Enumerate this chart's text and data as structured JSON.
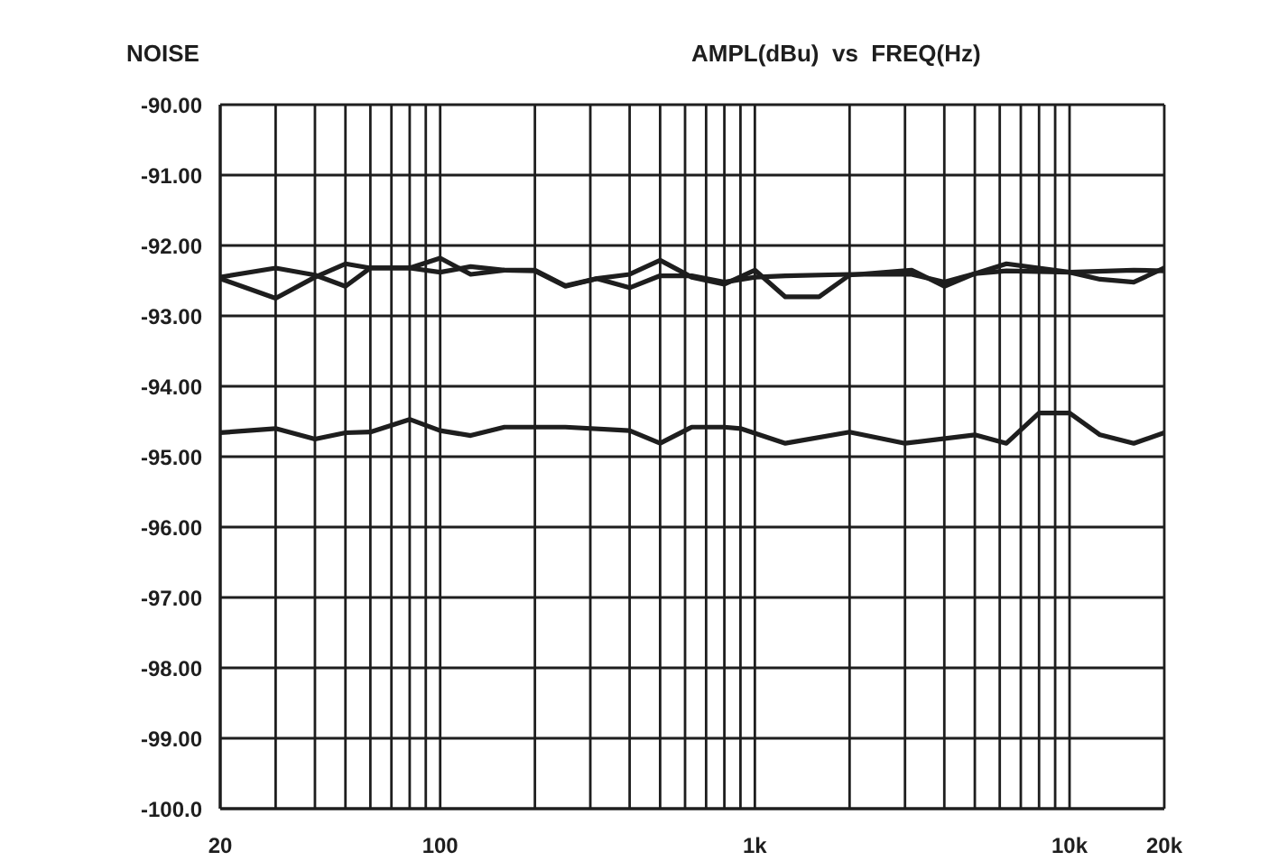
{
  "chart_data": {
    "type": "line",
    "title": "NOISE",
    "subtitle": "AMPL(dBu)  vs  FREQ(Hz)",
    "log": "x",
    "grid": true,
    "marker": "none",
    "line_style": "solid",
    "xlim": [
      20,
      20000
    ],
    "xticks": [
      20,
      {
        "value": 30,
        "label": null
      },
      {
        "value": 40,
        "label": null
      },
      {
        "value": 50,
        "label": null
      },
      {
        "value": 60,
        "label": null
      },
      {
        "value": 70,
        "label": null
      },
      {
        "value": 80,
        "label": null
      },
      {
        "value": 90,
        "label": null
      },
      100,
      {
        "value": 200,
        "label": null
      },
      {
        "value": 300,
        "label": null
      },
      {
        "value": 400,
        "label": null
      },
      {
        "value": 500,
        "label": null
      },
      {
        "value": 600,
        "label": null
      },
      {
        "value": 700,
        "label": null
      },
      {
        "value": 800,
        "label": null
      },
      {
        "value": 900,
        "label": null
      },
      {
        "value": 1000,
        "label": "1k"
      },
      {
        "value": 2000,
        "label": null
      },
      {
        "value": 3000,
        "label": null
      },
      {
        "value": 4000,
        "label": null
      },
      {
        "value": 5000,
        "label": null
      },
      {
        "value": 6000,
        "label": null
      },
      {
        "value": 7000,
        "label": null
      },
      {
        "value": 8000,
        "label": null
      },
      {
        "value": 9000,
        "label": null
      },
      {
        "value": 10000,
        "label": "10k"
      },
      {
        "value": 20000,
        "label": "20k"
      }
    ],
    "ylim": [
      -100,
      -90
    ],
    "yticks": [
      {
        "value": -100,
        "label": "-100.0"
      },
      {
        "value": -99,
        "label": "-99.00"
      },
      {
        "value": -98,
        "label": "-98.00"
      },
      {
        "value": -97,
        "label": "-97.00"
      },
      {
        "value": -96,
        "label": "-96.00"
      },
      {
        "value": -95,
        "label": "-95.00"
      },
      {
        "value": -94,
        "label": "-94.00"
      },
      {
        "value": -93,
        "label": "-93.00"
      },
      {
        "value": -92,
        "label": "-92.00"
      },
      {
        "value": -91,
        "label": "-91.00"
      },
      {
        "value": -90,
        "label": "-90.00"
      }
    ],
    "series": [
      {
        "color": "#1e1e1e",
        "x": [
          20,
          30,
          40,
          50,
          60,
          80,
          100,
          125,
          160,
          200,
          250,
          315,
          400,
          500,
          630,
          800,
          1000,
          1250,
          1600,
          2000,
          3150,
          4000,
          5000,
          6300,
          10000,
          12500,
          16000,
          20000
        ],
        "values": [
          -92.47,
          -92.75,
          -92.45,
          -92.26,
          -92.32,
          -92.32,
          -92.18,
          -92.41,
          -92.35,
          -92.35,
          -92.57,
          -92.47,
          -92.41,
          -92.21,
          -92.45,
          -92.55,
          -92.35,
          -92.73,
          -92.73,
          -92.42,
          -92.35,
          -92.58,
          -92.4,
          -92.26,
          -92.38,
          -92.48,
          -92.52,
          -92.32
        ]
      },
      {
        "color": "#1e1e1e",
        "x": [
          20,
          30,
          40,
          50,
          60,
          80,
          100,
          125,
          160,
          200,
          250,
          315,
          400,
          500,
          630,
          800,
          1000,
          1250,
          2000,
          3150,
          4000,
          5000,
          6300,
          10000,
          16000,
          20000
        ],
        "values": [
          -92.45,
          -92.32,
          -92.42,
          -92.58,
          -92.32,
          -92.32,
          -92.38,
          -92.3,
          -92.35,
          -92.36,
          -92.58,
          -92.47,
          -92.6,
          -92.43,
          -92.43,
          -92.52,
          -92.45,
          -92.43,
          -92.41,
          -92.41,
          -92.52,
          -92.4,
          -92.36,
          -92.38,
          -92.35,
          -92.36
        ]
      },
      {
        "color": "#1e1e1e",
        "x": [
          20,
          30,
          40,
          50,
          60,
          80,
          100,
          125,
          160,
          250,
          400,
          500,
          630,
          800,
          900,
          1250,
          2000,
          3000,
          5000,
          6300,
          8000,
          10000,
          12500,
          16000,
          20000
        ],
        "values": [
          -94.66,
          -94.6,
          -94.75,
          -94.66,
          -94.65,
          -94.47,
          -94.63,
          -94.7,
          -94.58,
          -94.58,
          -94.63,
          -94.81,
          -94.58,
          -94.58,
          -94.6,
          -94.81,
          -94.65,
          -94.81,
          -94.69,
          -94.81,
          -94.38,
          -94.38,
          -94.69,
          -94.81,
          -94.66
        ]
      }
    ]
  }
}
